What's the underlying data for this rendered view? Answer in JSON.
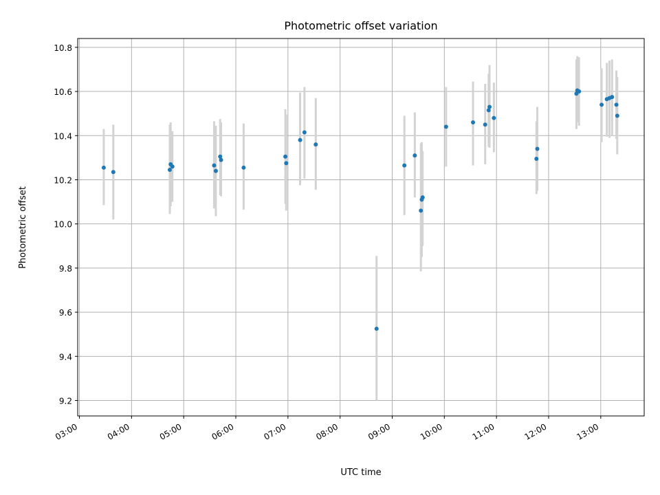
{
  "chart_data": {
    "type": "scatter",
    "title": "Photometric offset variation",
    "xlabel": "UTC time",
    "ylabel": "Photometric offset",
    "x_ticks": [
      "03:00",
      "04:00",
      "05:00",
      "06:00",
      "07:00",
      "08:00",
      "09:00",
      "10:00",
      "11:00",
      "12:00",
      "13:00"
    ],
    "y_ticks": [
      "9.2",
      "9.4",
      "9.6",
      "9.8",
      "10.0",
      "10.2",
      "10.4",
      "10.6",
      "10.8"
    ],
    "xlim": [
      "02:58",
      "13:50"
    ],
    "ylim": [
      9.13,
      10.84
    ],
    "grid": true,
    "colors": {
      "points": "#1f77b4",
      "errorbars": "#d3d3d3",
      "grid": "#b0b0b0",
      "frame": "#000000"
    },
    "points": [
      {
        "x": "03:28",
        "y": 10.255,
        "ylo": 10.085,
        "yhi": 10.43
      },
      {
        "x": "03:39",
        "y": 10.235,
        "ylo": 10.02,
        "yhi": 10.45
      },
      {
        "x": "04:44",
        "y": 10.245,
        "ylo": 10.045,
        "yhi": 10.45
      },
      {
        "x": "04:45",
        "y": 10.27,
        "ylo": 10.08,
        "yhi": 10.46
      },
      {
        "x": "04:47",
        "y": 10.26,
        "ylo": 10.1,
        "yhi": 10.42
      },
      {
        "x": "05:35",
        "y": 10.265,
        "ylo": 10.07,
        "yhi": 10.465
      },
      {
        "x": "05:37",
        "y": 10.24,
        "ylo": 10.035,
        "yhi": 10.445
      },
      {
        "x": "05:42",
        "y": 10.305,
        "ylo": 10.13,
        "yhi": 10.475
      },
      {
        "x": "05:43",
        "y": 10.29,
        "ylo": 10.125,
        "yhi": 10.46
      },
      {
        "x": "06:09",
        "y": 10.255,
        "ylo": 10.065,
        "yhi": 10.455
      },
      {
        "x": "06:57",
        "y": 10.305,
        "ylo": 10.09,
        "yhi": 10.52
      },
      {
        "x": "06:58",
        "y": 10.275,
        "ylo": 10.06,
        "yhi": 10.495
      },
      {
        "x": "07:14",
        "y": 10.38,
        "ylo": 10.175,
        "yhi": 10.595
      },
      {
        "x": "07:19",
        "y": 10.415,
        "ylo": 10.205,
        "yhi": 10.62
      },
      {
        "x": "07:32",
        "y": 10.36,
        "ylo": 10.155,
        "yhi": 10.57
      },
      {
        "x": "08:42",
        "y": 9.525,
        "ylo": 9.2,
        "yhi": 9.855
      },
      {
        "x": "09:14",
        "y": 10.265,
        "ylo": 10.04,
        "yhi": 10.49
      },
      {
        "x": "09:26",
        "y": 10.31,
        "ylo": 10.12,
        "yhi": 10.505
      },
      {
        "x": "09:33",
        "y": 10.06,
        "ylo": 9.785,
        "yhi": 10.365
      },
      {
        "x": "09:34",
        "y": 10.11,
        "ylo": 9.85,
        "yhi": 10.37
      },
      {
        "x": "09:35",
        "y": 10.12,
        "ylo": 9.9,
        "yhi": 10.33
      },
      {
        "x": "10:02",
        "y": 10.44,
        "ylo": 10.26,
        "yhi": 10.62
      },
      {
        "x": "10:33",
        "y": 10.46,
        "ylo": 10.265,
        "yhi": 10.645
      },
      {
        "x": "10:47",
        "y": 10.45,
        "ylo": 10.27,
        "yhi": 10.635
      },
      {
        "x": "10:51",
        "y": 10.515,
        "ylo": 10.35,
        "yhi": 10.68
      },
      {
        "x": "10:52",
        "y": 10.53,
        "ylo": 10.345,
        "yhi": 10.72
      },
      {
        "x": "10:57",
        "y": 10.48,
        "ylo": 10.325,
        "yhi": 10.64
      },
      {
        "x": "11:46",
        "y": 10.295,
        "ylo": 10.135,
        "yhi": 10.465
      },
      {
        "x": "11:47",
        "y": 10.34,
        "ylo": 10.15,
        "yhi": 10.53
      },
      {
        "x": "12:32",
        "y": 10.59,
        "ylo": 10.43,
        "yhi": 10.745
      },
      {
        "x": "12:33",
        "y": 10.605,
        "ylo": 10.46,
        "yhi": 10.76
      },
      {
        "x": "12:35",
        "y": 10.6,
        "ylo": 10.445,
        "yhi": 10.755
      },
      {
        "x": "13:01",
        "y": 10.54,
        "ylo": 10.37,
        "yhi": 10.705
      },
      {
        "x": "13:07",
        "y": 10.565,
        "ylo": 10.395,
        "yhi": 10.73
      },
      {
        "x": "13:10",
        "y": 10.57,
        "ylo": 10.39,
        "yhi": 10.74
      },
      {
        "x": "13:13",
        "y": 10.575,
        "ylo": 10.4,
        "yhi": 10.745
      },
      {
        "x": "13:18",
        "y": 10.54,
        "ylo": 10.385,
        "yhi": 10.695
      },
      {
        "x": "13:19",
        "y": 10.49,
        "ylo": 10.315,
        "yhi": 10.665
      }
    ]
  }
}
